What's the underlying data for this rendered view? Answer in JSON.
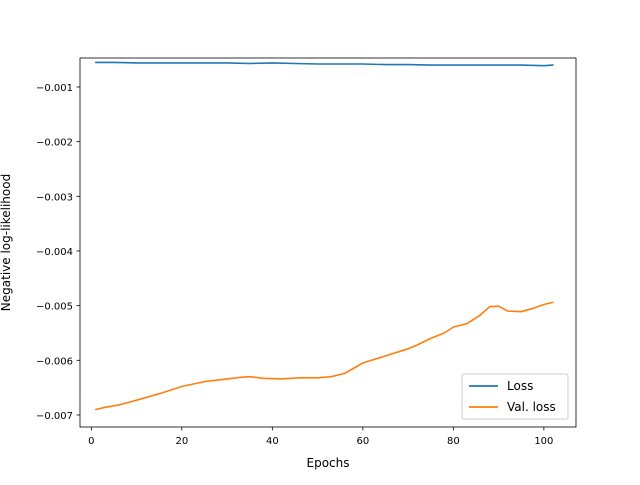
{
  "chart_data": {
    "type": "line",
    "title": "",
    "xlabel": "Epochs",
    "ylabel": "Negative log-likelihood",
    "xlim": [
      -2.5,
      107.1
    ],
    "ylim": [
      -0.00722,
      -0.00047
    ],
    "xticks": [
      0,
      20,
      40,
      60,
      80,
      100
    ],
    "xtick_labels": [
      "0",
      "20",
      "40",
      "60",
      "80",
      "100"
    ],
    "yticks": [
      -0.007,
      -0.006,
      -0.005,
      -0.004,
      -0.003,
      -0.002,
      -0.001
    ],
    "ytick_labels": [
      "−0.007",
      "−0.006",
      "−0.005",
      "−0.004",
      "−0.003",
      "−0.002",
      "−0.001"
    ],
    "grid": false,
    "legend_position": "lower-right",
    "series": [
      {
        "name": "Loss",
        "color": "#1f77b4",
        "x": [
          1,
          5,
          10,
          15,
          20,
          25,
          30,
          35,
          40,
          45,
          50,
          55,
          60,
          65,
          70,
          75,
          80,
          85,
          90,
          95,
          100,
          102
        ],
        "y": [
          -0.00055,
          -0.00055,
          -0.00056,
          -0.00056,
          -0.00056,
          -0.00056,
          -0.00056,
          -0.00057,
          -0.00056,
          -0.00057,
          -0.00058,
          -0.00058,
          -0.00058,
          -0.00059,
          -0.00059,
          -0.0006,
          -0.0006,
          -0.0006,
          -0.0006,
          -0.0006,
          -0.00061,
          -0.0006
        ]
      },
      {
        "name": "Val. loss",
        "color": "#ff7f0e",
        "x": [
          1,
          3,
          6,
          10,
          15,
          20,
          25,
          30,
          33,
          35,
          38,
          42,
          46,
          50,
          53,
          56,
          60,
          65,
          70,
          72,
          75,
          78,
          80,
          83,
          86,
          88,
          90,
          92,
          95,
          98,
          100,
          102
        ],
        "y": [
          -0.0069,
          -0.00686,
          -0.00682,
          -0.00673,
          -0.00661,
          -0.00648,
          -0.00639,
          -0.00634,
          -0.00631,
          -0.0063,
          -0.00633,
          -0.00634,
          -0.00632,
          -0.00632,
          -0.0063,
          -0.00624,
          -0.00605,
          -0.00592,
          -0.00579,
          -0.00572,
          -0.0056,
          -0.0055,
          -0.00539,
          -0.00533,
          -0.00517,
          -0.00502,
          -0.00501,
          -0.0051,
          -0.00511,
          -0.00504,
          -0.00498,
          -0.00494
        ]
      }
    ]
  }
}
